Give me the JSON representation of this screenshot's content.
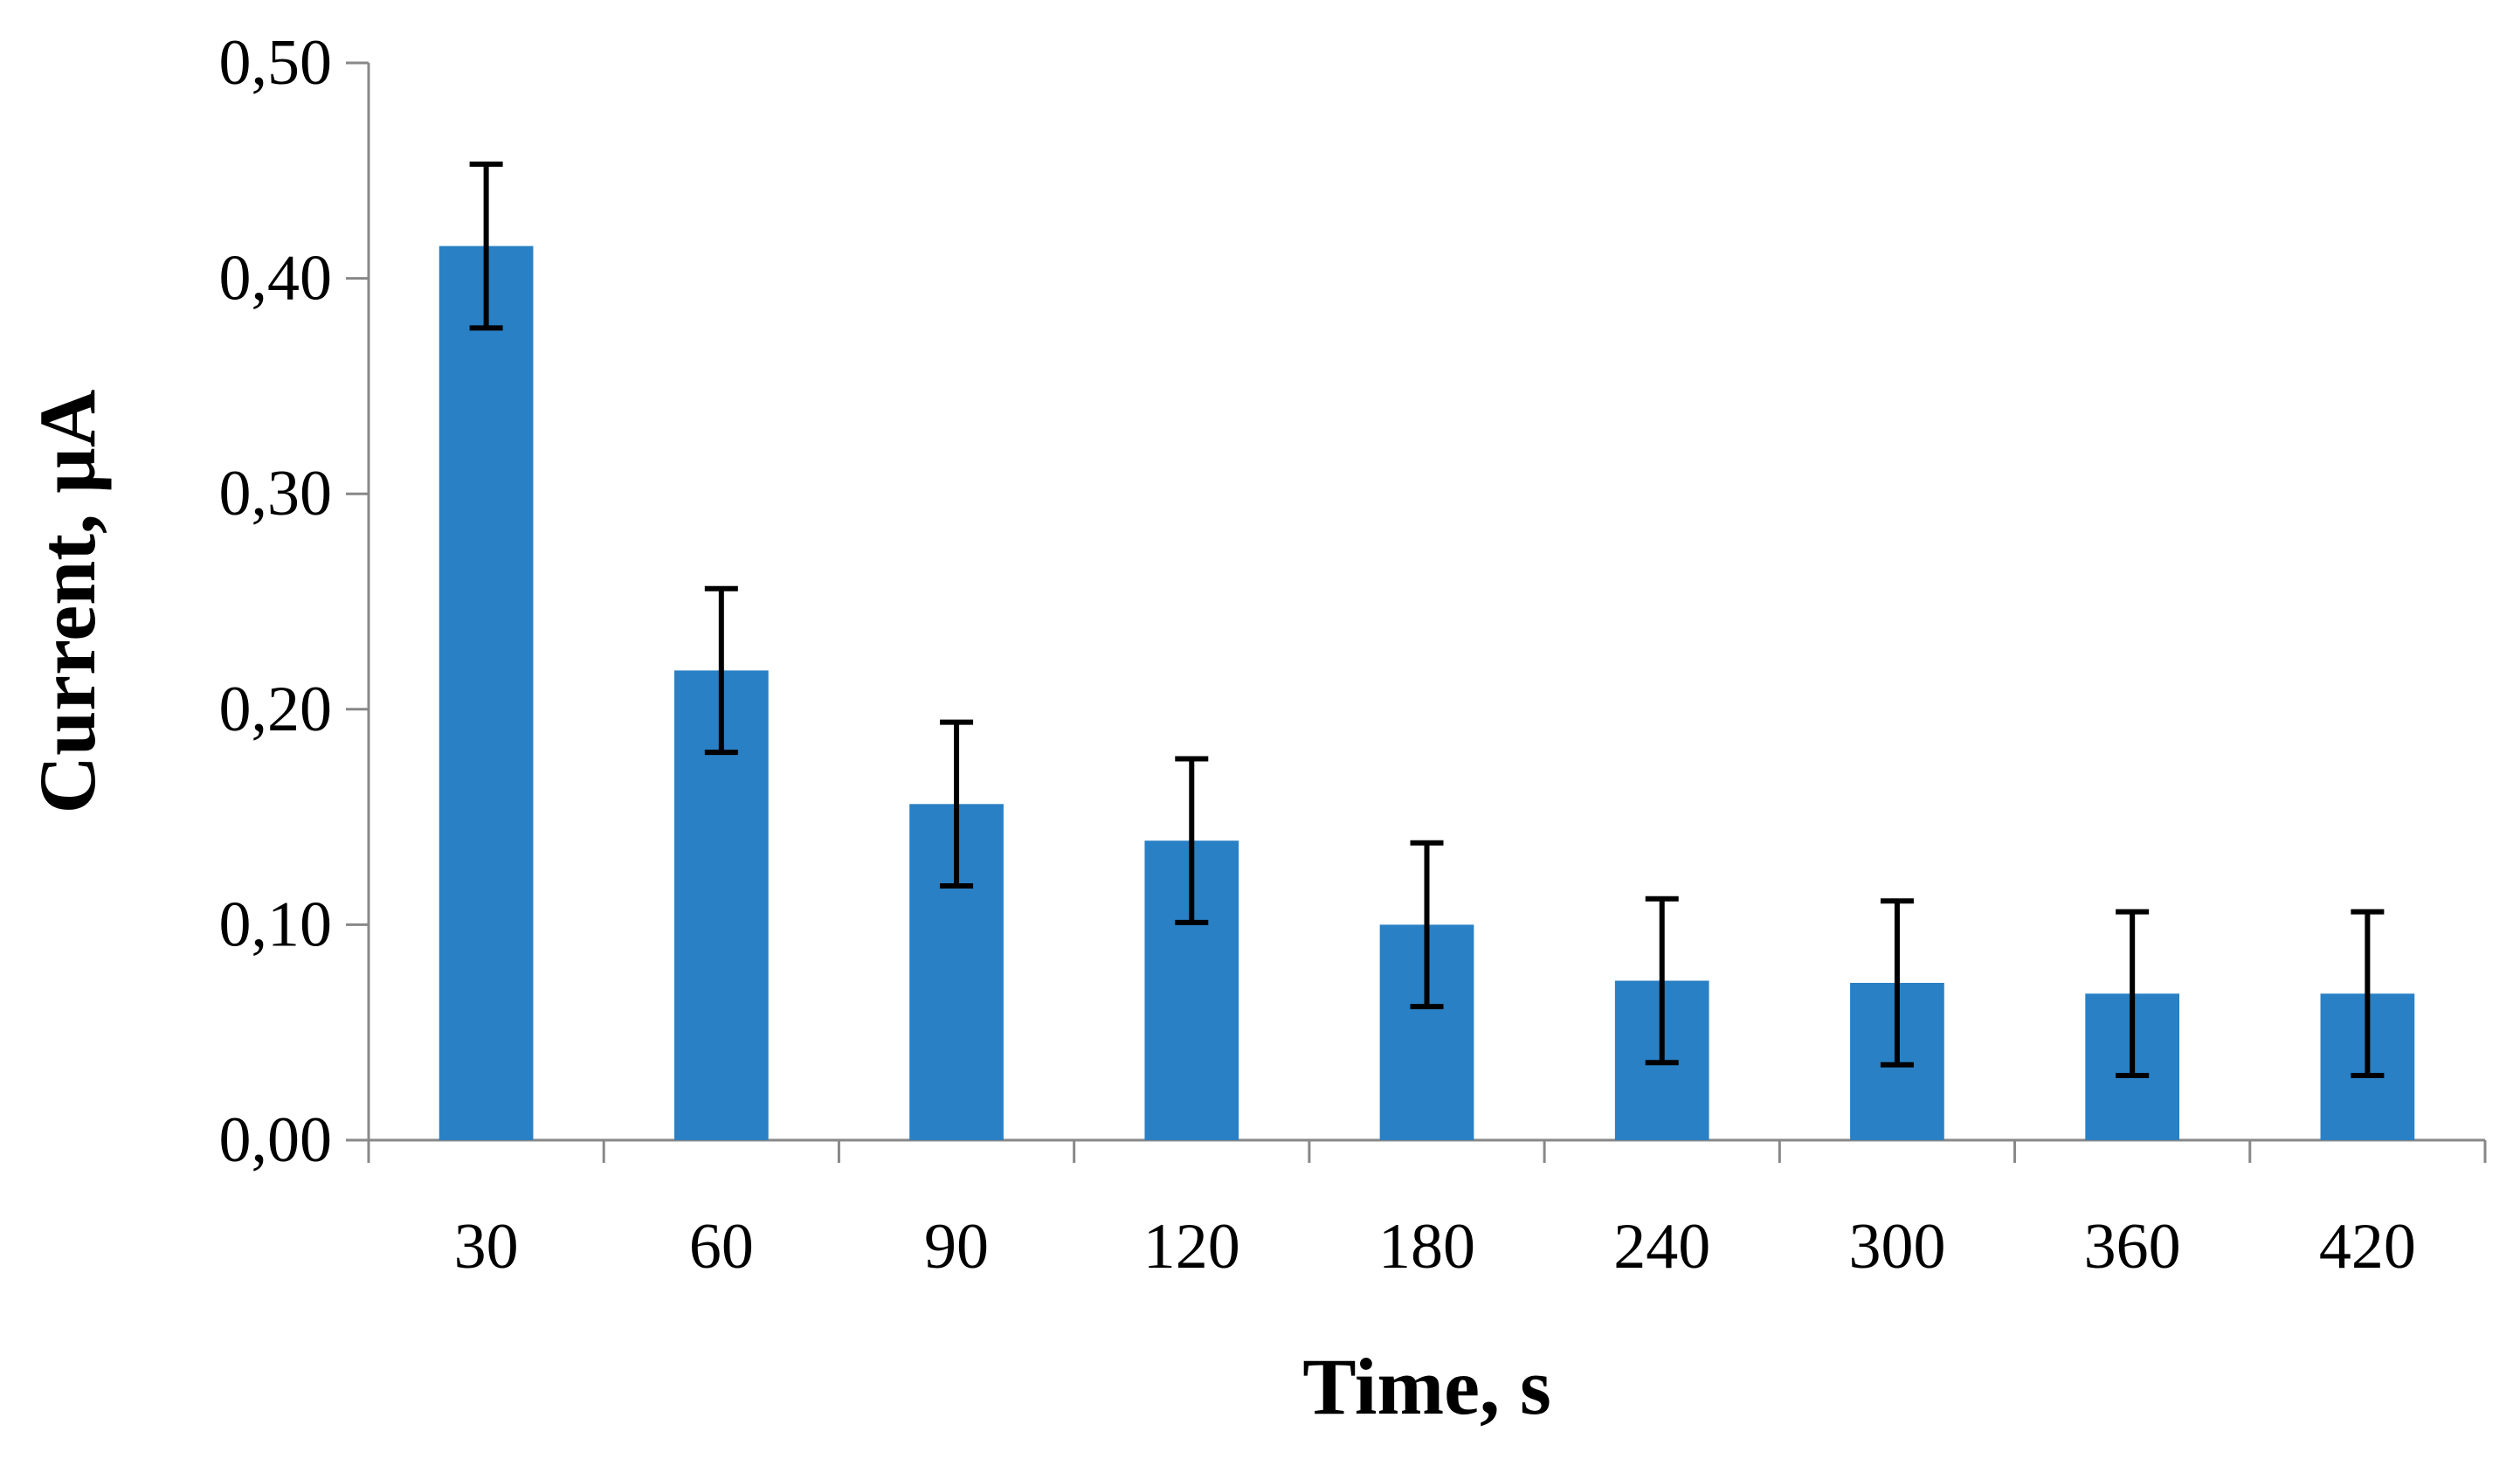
{
  "chart_data": {
    "type": "bar",
    "xlabel": "Time, s",
    "ylabel": "Current, µA",
    "categories": [
      "30",
      "60",
      "90",
      "120",
      "180",
      "240",
      "300",
      "360",
      "420"
    ],
    "series": [
      {
        "values": [
          0.415,
          0.218,
          0.156,
          0.139,
          0.1,
          0.074,
          0.073,
          0.068,
          0.068
        ],
        "errors": [
          0.038,
          0.038,
          0.038,
          0.038,
          0.038,
          0.038,
          0.038,
          0.038,
          0.038
        ],
        "color": "#2980C4"
      }
    ],
    "ylim": [
      0,
      0.5
    ],
    "yticks": [
      0.0,
      0.1,
      0.2,
      0.3,
      0.4,
      0.5
    ],
    "ytick_labels": [
      "0,00",
      "0,10",
      "0,20",
      "0,30",
      "0,40",
      "0,50"
    ],
    "grid": false,
    "legend": "none",
    "axis_color": "#888888",
    "error_bar_color": "#000000"
  }
}
